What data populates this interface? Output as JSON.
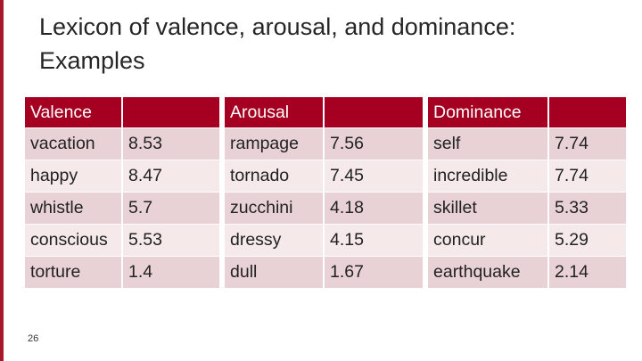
{
  "slide": {
    "title_line1": "Lexicon of valence, arousal, and dominance:",
    "title_line2": "Examples",
    "page_number": "26",
    "accent_color": "#a50021"
  },
  "table": {
    "headers": [
      "Valence",
      "Arousal",
      "Dominance"
    ],
    "rows": [
      [
        "vacation",
        "8.53",
        "rampage",
        "7.56",
        "self",
        "7.74"
      ],
      [
        "happy",
        "8.47",
        "tornado",
        "7.45",
        "incredible",
        "7.74"
      ],
      [
        "whistle",
        "5.7",
        "zucchini",
        "4.18",
        "skillet",
        "5.33"
      ],
      [
        "conscious",
        "5.53",
        "dressy",
        "4.15",
        "concur",
        "5.29"
      ],
      [
        "torture",
        "1.4",
        "dull",
        "1.67",
        "earthquake",
        "2.14"
      ]
    ]
  }
}
